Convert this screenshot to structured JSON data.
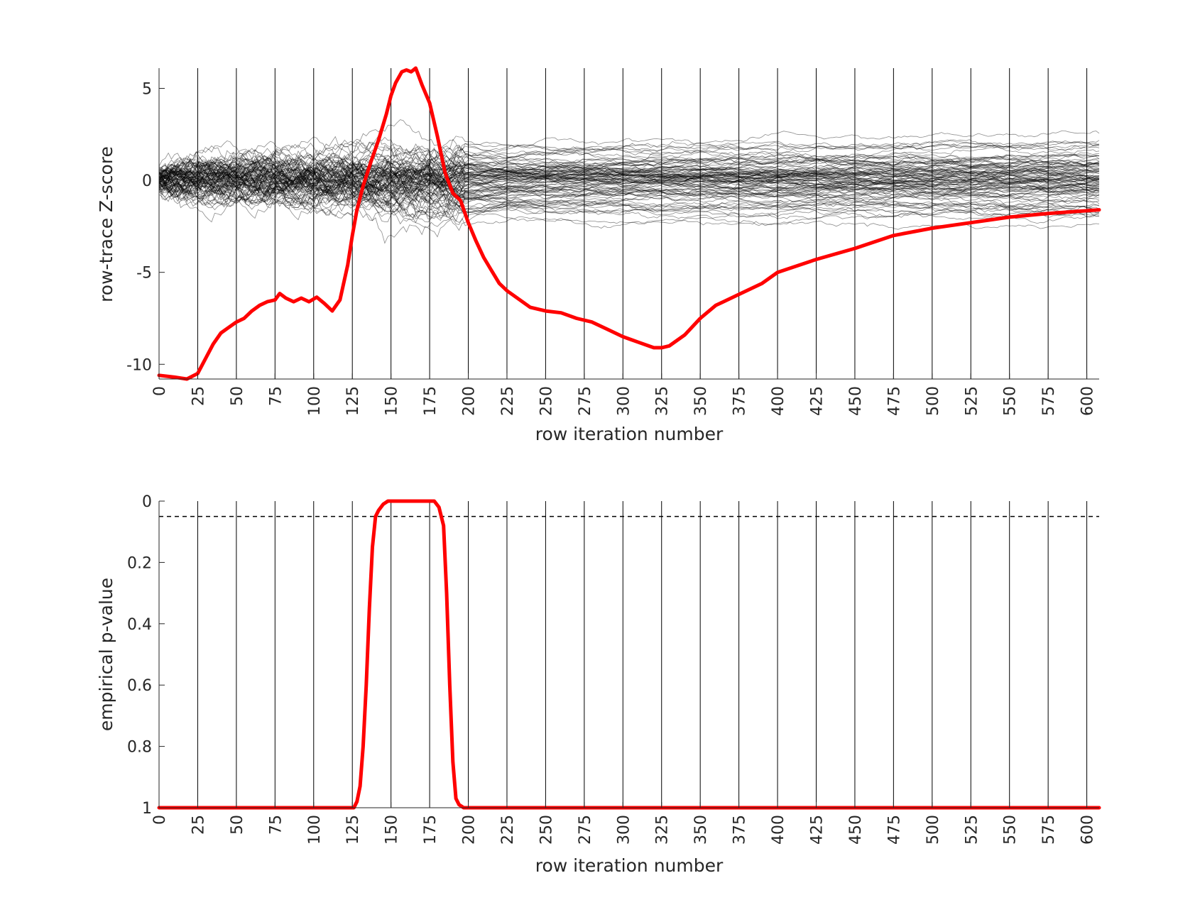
{
  "chart_data": [
    {
      "type": "line",
      "xlabel": "row iteration number",
      "ylabel": "row-trace Z-score",
      "xlim": [
        0,
        608
      ],
      "ylim": [
        -10.8,
        6.1
      ],
      "x_ticks": [
        0,
        25,
        50,
        75,
        100,
        125,
        150,
        175,
        200,
        225,
        250,
        275,
        300,
        325,
        350,
        375,
        400,
        425,
        450,
        475,
        500,
        525,
        550,
        575,
        600
      ],
      "x_tick_labels": [
        "0",
        "25",
        "50",
        "75",
        "100",
        "125",
        "150",
        "175",
        "200",
        "225",
        "250",
        "275",
        "300",
        "325",
        "350",
        "375",
        "400",
        "425",
        "450",
        "475",
        "500",
        "525",
        "550",
        "575",
        "600"
      ],
      "y_ticks": [
        5,
        0,
        -5,
        -10
      ],
      "y_tick_labels": [
        "5",
        "0",
        "-5",
        "-10"
      ],
      "vertical_grid": true,
      "colors": {
        "main": "#ff0000",
        "background": "#000000",
        "grid": "#000000"
      },
      "background_traces": {
        "count": 100,
        "color": "#000000",
        "description_note": ""
      },
      "series": [
        {
          "style": "main",
          "x": [
            0,
            10,
            18,
            25,
            30,
            35,
            40,
            45,
            50,
            55,
            60,
            65,
            70,
            75,
            78,
            82,
            87,
            92,
            97,
            102,
            107,
            112,
            117,
            122,
            125,
            128,
            132,
            137,
            142,
            147,
            150,
            153,
            157,
            160,
            163,
            166,
            170,
            175,
            180,
            185,
            190,
            195,
            200,
            205,
            210,
            215,
            220,
            225,
            230,
            240,
            250,
            260,
            270,
            280,
            290,
            300,
            310,
            320,
            325,
            330,
            340,
            350,
            360,
            375,
            390,
            400,
            425,
            450,
            475,
            500,
            525,
            550,
            575,
            600,
            608
          ],
          "y": [
            -10.6,
            -10.7,
            -10.8,
            -10.5,
            -9.7,
            -8.9,
            -8.3,
            -8.0,
            -7.7,
            -7.5,
            -7.1,
            -6.8,
            -6.6,
            -6.5,
            -6.15,
            -6.4,
            -6.6,
            -6.4,
            -6.6,
            -6.35,
            -6.7,
            -7.1,
            -6.5,
            -4.6,
            -3.0,
            -1.6,
            -0.3,
            1.0,
            2.2,
            3.6,
            4.6,
            5.3,
            5.9,
            6.0,
            5.9,
            6.1,
            5.2,
            4.2,
            2.4,
            0.4,
            -0.7,
            -1.1,
            -2.3,
            -3.3,
            -4.2,
            -4.9,
            -5.6,
            -6.0,
            -6.3,
            -6.9,
            -7.1,
            -7.2,
            -7.5,
            -7.7,
            -8.1,
            -8.5,
            -8.8,
            -9.1,
            -9.1,
            -9.0,
            -8.4,
            -7.5,
            -6.8,
            -6.2,
            -5.6,
            -5.0,
            -4.3,
            -3.7,
            -3.0,
            -2.6,
            -2.3,
            -2.0,
            -1.8,
            -1.65,
            -1.6
          ]
        }
      ]
    },
    {
      "type": "line",
      "xlabel": "row iteration number",
      "ylabel": "empirical p-value",
      "xlim": [
        0,
        608
      ],
      "ylim": [
        1,
        0
      ],
      "y_inverted": true,
      "x_ticks": [
        0,
        25,
        50,
        75,
        100,
        125,
        150,
        175,
        200,
        225,
        250,
        275,
        300,
        325,
        350,
        375,
        400,
        425,
        450,
        475,
        500,
        525,
        550,
        575,
        600
      ],
      "x_tick_labels": [
        "0",
        "25",
        "50",
        "75",
        "100",
        "125",
        "150",
        "175",
        "200",
        "225",
        "250",
        "275",
        "300",
        "325",
        "350",
        "375",
        "400",
        "425",
        "450",
        "475",
        "500",
        "525",
        "550",
        "575",
        "600"
      ],
      "y_ticks": [
        0,
        0.2,
        0.4,
        0.6,
        0.8,
        1
      ],
      "y_tick_labels": [
        "0",
        "0.2",
        "0.4",
        "0.6",
        "0.8",
        "1"
      ],
      "vertical_grid": true,
      "threshold": 0.05,
      "colors": {
        "main": "#ff0000",
        "threshold": "#000000",
        "grid": "#000000"
      },
      "series": [
        {
          "style": "main",
          "x": [
            0,
            120,
            126,
            128,
            130,
            132,
            134,
            136,
            138,
            140,
            142,
            145,
            148,
            150,
            155,
            160,
            170,
            178,
            181,
            184,
            186,
            188,
            190,
            192,
            194,
            197,
            200,
            300,
            400,
            500,
            608
          ],
          "y": [
            1,
            1,
            1,
            0.98,
            0.93,
            0.8,
            0.6,
            0.35,
            0.15,
            0.05,
            0.03,
            0.01,
            0.0,
            0.0,
            0.0,
            0.0,
            0.0,
            0.0,
            0.02,
            0.08,
            0.3,
            0.6,
            0.85,
            0.97,
            0.99,
            1,
            1,
            1,
            1,
            1,
            1
          ]
        }
      ]
    }
  ]
}
